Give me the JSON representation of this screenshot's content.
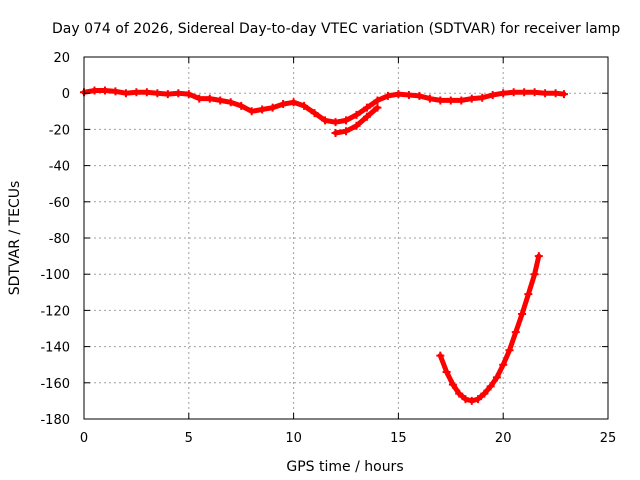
{
  "chart_data": {
    "type": "scatter",
    "title": "Day 074 of 2026, Sidereal Day-to-day VTEC variation (SDTVAR) for receiver lamp",
    "xlabel": "GPS time / hours",
    "ylabel": "SDTVAR / TECUs",
    "xlim": [
      0,
      25
    ],
    "ylim": [
      -180,
      20
    ],
    "xticks": [
      0,
      5,
      10,
      15,
      20,
      25
    ],
    "yticks": [
      20,
      0,
      -20,
      -40,
      -60,
      -80,
      -100,
      -120,
      -140,
      -160,
      -180
    ],
    "grid": true,
    "color": "#ff0000",
    "series": [
      {
        "x": [
          0,
          0.5,
          1,
          1.5,
          2,
          2.5,
          3,
          3.5,
          4,
          4.5,
          5,
          5.5,
          6,
          6.5,
          7,
          7.5,
          8,
          8.5,
          9,
          9.5,
          10,
          10.5,
          11,
          11.5,
          12,
          12.5,
          13,
          13.5,
          14,
          14.5,
          15,
          15.5,
          16,
          16.5,
          17,
          17.5,
          18,
          18.5,
          19,
          19.5,
          20,
          20.5,
          21,
          21.5,
          22,
          22.5,
          22.9
        ],
        "y": [
          0.5,
          1.5,
          1.5,
          1,
          0,
          0.5,
          0.5,
          0,
          -0.5,
          0,
          -0.5,
          -3,
          -3,
          -4,
          -5,
          -7,
          -10,
          -9,
          -8,
          -6,
          -5,
          -7,
          -11,
          -15,
          -16,
          -15,
          -12,
          -8,
          -4,
          -1.5,
          -0.5,
          -1,
          -1.5,
          -3,
          -4,
          -4,
          -4,
          -3,
          -2.5,
          -1,
          0,
          0.5,
          0.5,
          0.5,
          0,
          0,
          -0.5
        ]
      },
      {
        "x": [
          12.0,
          12.5,
          13.0,
          13.5,
          14.0
        ],
        "y": [
          -22,
          -21,
          -18,
          -13,
          -8
        ]
      },
      {
        "x": [
          17,
          17.3,
          17.6,
          17.9,
          18.2,
          18.5,
          18.8,
          19.1,
          19.4,
          19.7,
          20.0,
          20.3,
          20.6,
          20.9,
          21.2,
          21.5,
          21.7
        ],
        "y": [
          -145,
          -154,
          -161,
          -166,
          -169,
          -170,
          -169,
          -166,
          -162,
          -157,
          -150,
          -142,
          -132,
          -122,
          -111,
          -100,
          -90
        ]
      }
    ]
  }
}
